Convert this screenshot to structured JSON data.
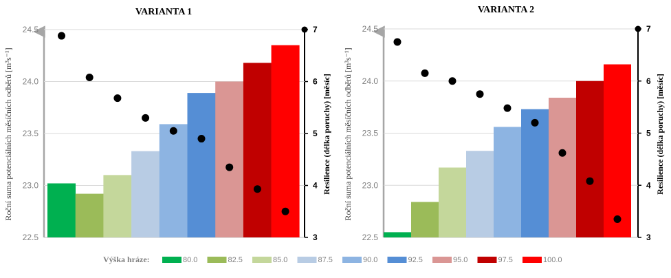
{
  "chart_data": [
    {
      "type": "bar",
      "title": "VARIANTA 1",
      "ylabel_left": "Roční suma potenciálních měsíčních odběrů [m³s⁻¹]",
      "ylabel_right": "Resilience (délka poruchy) [měsíc]",
      "categories": [
        "80.0",
        "82.5",
        "85.0",
        "87.5",
        "90.0",
        "92.5",
        "95.0",
        "97.5",
        "100.0"
      ],
      "values": [
        23.02,
        22.92,
        23.1,
        23.33,
        23.59,
        23.89,
        24.0,
        24.18,
        24.35
      ],
      "scatter_right": [
        6.88,
        6.08,
        5.68,
        5.3,
        5.05,
        4.9,
        4.35,
        3.93,
        3.5
      ],
      "ylim_left": [
        22.5,
        24.5
      ],
      "yticks_left": [
        "22.5",
        "23.0",
        "23.5",
        "24.0",
        "24.5"
      ],
      "ylim_right": [
        3,
        7
      ],
      "yticks_right": [
        "3",
        "4",
        "5",
        "6",
        "7"
      ]
    },
    {
      "type": "bar",
      "title": "VARIANTA 2",
      "ylabel_left": "Roční suma potenciálních měsíčních odběrů [m³s⁻¹]",
      "ylabel_right": "Resilience (délka poruchy) [měsíc]",
      "categories": [
        "80.0",
        "82.5",
        "85.0",
        "87.5",
        "90.0",
        "92.5",
        "95.0",
        "97.5",
        "100.0"
      ],
      "values": [
        22.55,
        22.84,
        23.17,
        23.33,
        23.56,
        23.73,
        23.84,
        24.0,
        24.16
      ],
      "scatter_right": [
        6.75,
        6.15,
        6.0,
        5.75,
        5.48,
        5.2,
        4.62,
        4.08,
        3.35
      ],
      "ylim_left": [
        22.5,
        24.5
      ],
      "yticks_left": [
        "22.5",
        "23.0",
        "23.5",
        "24.0",
        "24.5"
      ],
      "ylim_right": [
        3,
        7
      ],
      "yticks_right": [
        "3",
        "4",
        "5",
        "6",
        "7"
      ]
    }
  ],
  "legend": {
    "title": "Výška hráze:",
    "items": [
      "80.0",
      "82.5",
      "85.0",
      "87.5",
      "90.0",
      "92.5",
      "95.0",
      "97.5",
      "100.0"
    ]
  },
  "colors": [
    "#00b050",
    "#9bbb59",
    "#c4d79b",
    "#b8cce4",
    "#8db4e2",
    "#558ed5",
    "#da9694",
    "#c00000",
    "#ff0000"
  ]
}
